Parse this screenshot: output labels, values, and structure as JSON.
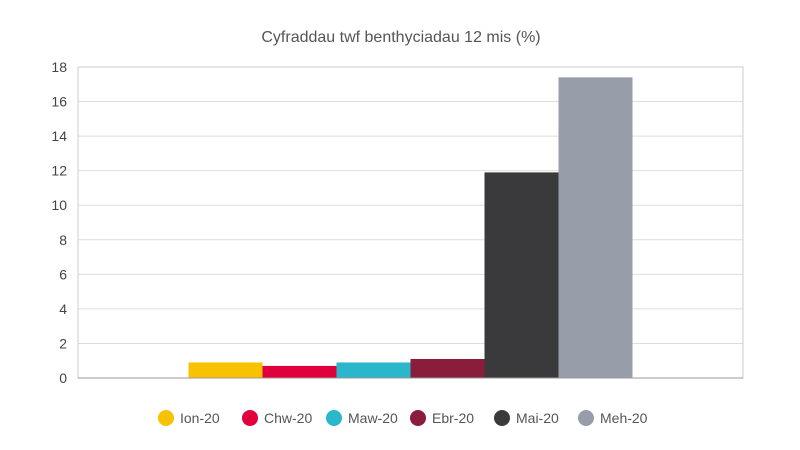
{
  "chart_data": {
    "type": "bar",
    "title": "Cyfraddau twf benthyciadau 12 mis (%)",
    "xlabel": "",
    "ylabel": "",
    "ylim": [
      0,
      18
    ],
    "yticks": [
      "0",
      "2",
      "4",
      "6",
      "8",
      "10",
      "12",
      "14",
      "16",
      "18"
    ],
    "grid": true,
    "legend_position": "bottom",
    "series": [
      {
        "name": "Ion-20",
        "value": 0.9,
        "color": "#F9C200"
      },
      {
        "name": "Chw-20",
        "value": 0.7,
        "color": "#E0003C"
      },
      {
        "name": "Maw-20",
        "value": 0.9,
        "color": "#2AB7CB"
      },
      {
        "name": "Ebr-20",
        "value": 1.1,
        "color": "#8A1C3C"
      },
      {
        "name": "Mai-20",
        "value": 11.9,
        "color": "#3A3A3C"
      },
      {
        "name": "Meh-20",
        "value": 17.4,
        "color": "#989DAA"
      }
    ]
  }
}
